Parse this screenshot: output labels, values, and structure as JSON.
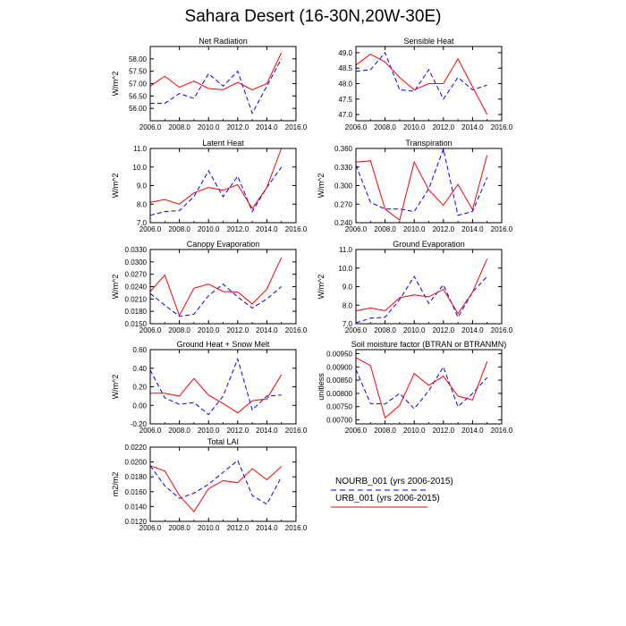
{
  "page": {
    "title": "Sahara Desert (16-30N,20W-30E)"
  },
  "legend": {
    "items": [
      {
        "label": "NOURB_001 (yrs 2006-2015)",
        "color": "#0000ff",
        "dash": "dashed"
      },
      {
        "label": "URB_001 (yrs 2006-2015)",
        "color": "#ff0000",
        "dash": "solid"
      }
    ]
  },
  "chart_data": [
    {
      "type": "line",
      "title": "Net Radiation",
      "xlabel": "",
      "ylabel": "W/m^2",
      "xlim": [
        2006,
        2016
      ],
      "ylim": [
        55.5,
        58.5
      ],
      "xticks": [
        "2006.0",
        "2008.0",
        "2010.0",
        "2012.0",
        "2014.0",
        "2016.0"
      ],
      "yticks": [
        "56.00",
        "56.50",
        "57.00",
        "57.50",
        "58.00"
      ],
      "x": [
        2006,
        2007,
        2008,
        2009,
        2010,
        2011,
        2012,
        2013,
        2014,
        2015
      ],
      "series": [
        {
          "name": "NOURB_001 (yrs 2006-2015)",
          "color": "#0000ff",
          "dash": "dashed",
          "values": [
            56.2,
            56.2,
            56.6,
            56.4,
            57.4,
            56.9,
            57.5,
            55.8,
            56.9,
            58.0
          ]
        },
        {
          "name": "URB_001 (yrs 2006-2015)",
          "color": "#ff0000",
          "dash": "solid",
          "values": [
            56.9,
            57.3,
            56.85,
            57.1,
            56.8,
            56.75,
            57.05,
            56.75,
            57.0,
            58.25
          ]
        }
      ]
    },
    {
      "type": "line",
      "title": "Sensible Heat",
      "xlabel": "",
      "ylabel": "",
      "xlim": [
        2006,
        2016
      ],
      "ylim": [
        46.8,
        49.2
      ],
      "xticks": [
        "2006.0",
        "2008.0",
        "2010.0",
        "2012.0",
        "2014.0",
        "2016.0"
      ],
      "yticks": [
        "47.0",
        "47.5",
        "48.0",
        "48.5",
        "49.0"
      ],
      "x": [
        2006,
        2007,
        2008,
        2009,
        2010,
        2011,
        2012,
        2013,
        2014,
        2015
      ],
      "series": [
        {
          "name": "NOURB_001 (yrs 2006-2015)",
          "color": "#0000ff",
          "dash": "dashed",
          "values": [
            48.4,
            48.45,
            49.0,
            47.8,
            47.75,
            48.45,
            47.5,
            48.2,
            47.8,
            47.95
          ]
        },
        {
          "name": "URB_001 (yrs 2006-2015)",
          "color": "#ff0000",
          "dash": "solid",
          "values": [
            48.6,
            48.95,
            48.7,
            48.2,
            47.8,
            48.0,
            48.0,
            48.8,
            47.9,
            47.0
          ]
        }
      ]
    },
    {
      "type": "line",
      "title": "Latent Heat",
      "xlabel": "",
      "ylabel": "W/m^2",
      "xlim": [
        2006,
        2016
      ],
      "ylim": [
        7.0,
        11.0
      ],
      "xticks": [
        "2006.0",
        "2008.0",
        "2010.0",
        "2012.0",
        "2014.0",
        "2016.0"
      ],
      "yticks": [
        "7.0",
        "8.0",
        "9.0",
        "10.0",
        "11.0"
      ],
      "x": [
        2006,
        2007,
        2008,
        2009,
        2010,
        2011,
        2012,
        2013,
        2014,
        2015
      ],
      "series": [
        {
          "name": "NOURB_001 (yrs 2006-2015)",
          "color": "#0000ff",
          "dash": "dashed",
          "values": [
            7.4,
            7.6,
            7.65,
            8.4,
            9.8,
            8.4,
            9.5,
            7.6,
            8.9,
            10.0
          ]
        },
        {
          "name": "URB_001 (yrs 2006-2015)",
          "color": "#ff0000",
          "dash": "solid",
          "values": [
            8.1,
            8.25,
            8.0,
            8.6,
            8.9,
            8.75,
            9.05,
            7.75,
            8.9,
            11.0
          ]
        }
      ]
    },
    {
      "type": "line",
      "title": "Transpiration",
      "xlabel": "",
      "ylabel": "W/m^2",
      "xlim": [
        2006,
        2016
      ],
      "ylim": [
        0.24,
        0.36
      ],
      "xticks": [
        "2006.0",
        "2008.0",
        "2010.0",
        "2012.0",
        "2014.0",
        "2016.0"
      ],
      "yticks": [
        "0.240",
        "0.270",
        "0.300",
        "0.330",
        "0.360"
      ],
      "x": [
        2006,
        2007,
        2008,
        2009,
        2010,
        2011,
        2012,
        2013,
        2014,
        2015
      ],
      "series": [
        {
          "name": "NOURB_001 (yrs 2006-2015)",
          "color": "#0000ff",
          "dash": "dashed",
          "values": [
            0.333,
            0.273,
            0.262,
            0.262,
            0.258,
            0.295,
            0.359,
            0.252,
            0.258,
            0.313
          ]
        },
        {
          "name": "URB_001 (yrs 2006-2015)",
          "color": "#ff0000",
          "dash": "solid",
          "values": [
            0.338,
            0.34,
            0.262,
            0.244,
            0.338,
            0.293,
            0.268,
            0.302,
            0.261,
            0.349
          ]
        }
      ]
    },
    {
      "type": "line",
      "title": "Canopy Evaporation",
      "xlabel": "",
      "ylabel": "W/m^2",
      "xlim": [
        2006,
        2016
      ],
      "ylim": [
        0.015,
        0.033
      ],
      "xticks": [
        "2006.0",
        "2008.0",
        "2010.0",
        "2012.0",
        "2014.0",
        "2016.0"
      ],
      "yticks": [
        "0.0150",
        "0.0180",
        "0.0210",
        "0.0240",
        "0.0270",
        "0.0300",
        "0.0330"
      ],
      "x": [
        2006,
        2007,
        2008,
        2009,
        2010,
        2011,
        2012,
        2013,
        2014,
        2015
      ],
      "series": [
        {
          "name": "NOURB_001 (yrs 2006-2015)",
          "color": "#0000ff",
          "dash": "dashed",
          "values": [
            0.0223,
            0.0195,
            0.0168,
            0.0173,
            0.0218,
            0.0246,
            0.0215,
            0.0188,
            0.021,
            0.024
          ]
        },
        {
          "name": "URB_001 (yrs 2006-2015)",
          "color": "#ff0000",
          "dash": "solid",
          "values": [
            0.0228,
            0.0268,
            0.017,
            0.0236,
            0.0246,
            0.0228,
            0.0227,
            0.0198,
            0.0234,
            0.0311
          ]
        }
      ]
    },
    {
      "type": "line",
      "title": "Ground Evaporation",
      "xlabel": "",
      "ylabel": "W/m^2",
      "xlim": [
        2006,
        2016
      ],
      "ylim": [
        7.0,
        11.0
      ],
      "xticks": [
        "2006.0",
        "2008.0",
        "2010.0",
        "2012.0",
        "2014.0",
        "2016.0"
      ],
      "yticks": [
        "7.0",
        "8.0",
        "9.0",
        "10.0",
        "11.0"
      ],
      "x": [
        2006,
        2007,
        2008,
        2009,
        2010,
        2011,
        2012,
        2013,
        2014,
        2015
      ],
      "series": [
        {
          "name": "NOURB_001 (yrs 2006-2015)",
          "color": "#0000ff",
          "dash": "dashed",
          "values": [
            7.05,
            7.3,
            7.35,
            8.3,
            9.55,
            8.1,
            9.1,
            7.35,
            8.7,
            9.55
          ]
        },
        {
          "name": "URB_001 (yrs 2006-2015)",
          "color": "#ff0000",
          "dash": "solid",
          "values": [
            7.7,
            7.85,
            7.7,
            8.4,
            8.55,
            8.45,
            8.85,
            7.55,
            8.7,
            10.5
          ]
        }
      ]
    },
    {
      "type": "line",
      "title": "Ground Heat + Snow Melt",
      "xlabel": "",
      "ylabel": "W/m^2",
      "xlim": [
        2006,
        2016
      ],
      "ylim": [
        -0.2,
        0.6
      ],
      "xticks": [
        "2006.0",
        "2008.0",
        "2010.0",
        "2012.0",
        "2014.0",
        "2016.0"
      ],
      "yticks": [
        "-0.20",
        "0.00",
        "0.20",
        "0.40",
        "0.60"
      ],
      "x": [
        2006,
        2007,
        2008,
        2009,
        2010,
        2011,
        2012,
        2013,
        2014,
        2015
      ],
      "series": [
        {
          "name": "NOURB_001 (yrs 2006-2015)",
          "color": "#0000ff",
          "dash": "dashed",
          "values": [
            0.38,
            0.08,
            0.01,
            0.03,
            -0.1,
            0.1,
            0.5,
            -0.05,
            0.1,
            0.11
          ]
        },
        {
          "name": "URB_001 (yrs 2006-2015)",
          "color": "#ff0000",
          "dash": "solid",
          "values": [
            0.13,
            0.13,
            0.1,
            0.29,
            0.11,
            0.02,
            -0.08,
            0.05,
            0.07,
            0.33
          ]
        }
      ]
    },
    {
      "type": "line",
      "title": "Soil moisture factor (BTRAN or BTRANMN)",
      "xlabel": "",
      "ylabel": "unitless",
      "xlim": [
        2006,
        2016
      ],
      "ylim": [
        0.00685,
        0.00965
      ],
      "xticks": [
        "2006.0",
        "2008.0",
        "2010.0",
        "2012.0",
        "2014.0",
        "2016.0"
      ],
      "yticks": [
        "0.00700",
        "0.00750",
        "0.00800",
        "0.00850",
        "0.00900",
        "0.00950"
      ],
      "x": [
        2006,
        2007,
        2008,
        2009,
        2010,
        2011,
        2012,
        2013,
        2014,
        2015
      ],
      "series": [
        {
          "name": "NOURB_001 (yrs 2006-2015)",
          "color": "#0000ff",
          "dash": "dashed",
          "values": [
            0.0089,
            0.00762,
            0.0076,
            0.008,
            0.00742,
            0.0081,
            0.009,
            0.0075,
            0.008,
            0.0086
          ]
        },
        {
          "name": "URB_001 (yrs 2006-2015)",
          "color": "#ff0000",
          "dash": "solid",
          "values": [
            0.00935,
            0.00905,
            0.00708,
            0.00755,
            0.00875,
            0.0083,
            0.00865,
            0.0079,
            0.00775,
            0.0092
          ]
        }
      ]
    },
    {
      "type": "line",
      "title": "Total LAI",
      "xlabel": "",
      "ylabel": "m2/m2",
      "xlim": [
        2006,
        2016
      ],
      "ylim": [
        0.012,
        0.022
      ],
      "xticks": [
        "2006.0",
        "2008.0",
        "2010.0",
        "2012.0",
        "2014.0",
        "2016.0"
      ],
      "yticks": [
        "0.0120",
        "0.0140",
        "0.0160",
        "0.0180",
        "0.0200",
        "0.0220"
      ],
      "x": [
        2006,
        2007,
        2008,
        2009,
        2010,
        2011,
        2012,
        2013,
        2014,
        2015
      ],
      "series": [
        {
          "name": "NOURB_001 (yrs 2006-2015)",
          "color": "#0000ff",
          "dash": "dashed",
          "values": [
            0.0195,
            0.0168,
            0.0151,
            0.0158,
            0.017,
            0.0186,
            0.0202,
            0.0155,
            0.0143,
            0.018
          ]
        },
        {
          "name": "URB_001 (yrs 2006-2015)",
          "color": "#ff0000",
          "dash": "solid",
          "values": [
            0.0195,
            0.0188,
            0.0155,
            0.0133,
            0.0164,
            0.0175,
            0.0172,
            0.0191,
            0.0176,
            0.0194
          ]
        }
      ]
    }
  ]
}
